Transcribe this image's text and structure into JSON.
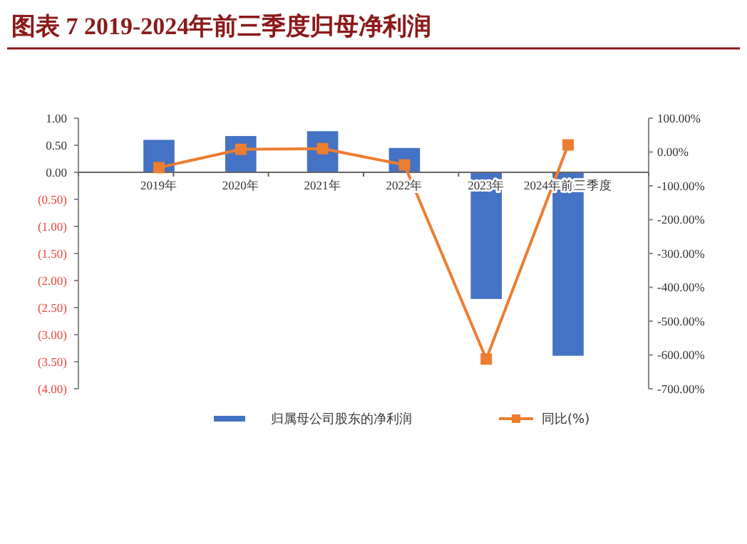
{
  "chart_data": {
    "type": "bar",
    "title": "图表 7   2019-2024年前三季度归母净利润",
    "categories": [
      "2019年",
      "2020年",
      "2021年",
      "2022年",
      "2023年",
      "2024年前三季度"
    ],
    "series": [
      {
        "name": "归属母公司股东的净利润",
        "color": "#4472c4",
        "values": [
          0.6,
          0.67,
          0.76,
          0.45,
          -2.34,
          -3.39
        ]
      },
      {
        "name": "同比(%)",
        "color": "#ed7d31",
        "type": "line",
        "axis": "y2",
        "marker": "square",
        "values": [
          -46,
          8,
          10,
          -38,
          -612,
          21
        ]
      }
    ],
    "ylim": [
      -4,
      1
    ],
    "yticks": [
      {
        "value": 1,
        "label": "1.00"
      },
      {
        "value": 0.5,
        "label": "0.50"
      },
      {
        "value": 0,
        "label": "0.00"
      },
      {
        "value": -0.5,
        "label": "(0.50)"
      },
      {
        "value": -1,
        "label": "(1.00)"
      },
      {
        "value": -1.5,
        "label": "(1.50)"
      },
      {
        "value": -2,
        "label": "(2.00)"
      },
      {
        "value": -2.5,
        "label": "(2.50)"
      },
      {
        "value": -3,
        "label": "(3.00)"
      },
      {
        "value": -3.5,
        "label": "(3.50)"
      },
      {
        "value": -4,
        "label": "(4.00)"
      }
    ],
    "y2lim": [
      -700,
      100
    ],
    "y2ticks": [
      {
        "value": 100,
        "label": "100.00%"
      },
      {
        "value": 0,
        "label": "0.00%"
      },
      {
        "value": -100,
        "label": "-100.00%"
      },
      {
        "value": -200,
        "label": "-200.00%"
      },
      {
        "value": -300,
        "label": "-300.00%"
      },
      {
        "value": -400,
        "label": "-400.00%"
      },
      {
        "value": -500,
        "label": "-500.00%"
      },
      {
        "value": -600,
        "label": "-600.00%"
      },
      {
        "value": -700,
        "label": "-700.00%"
      }
    ],
    "legend": "bottom",
    "grid": false
  }
}
